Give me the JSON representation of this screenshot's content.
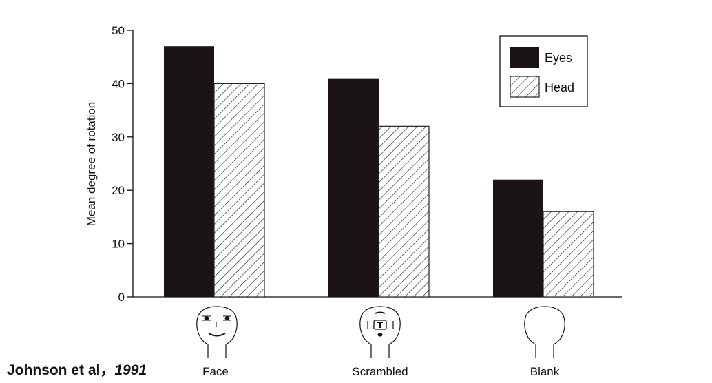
{
  "chart_data": {
    "type": "bar",
    "categories": [
      "Face",
      "Scrambled",
      "Blank"
    ],
    "series": [
      {
        "name": "Eyes",
        "values": [
          47,
          41,
          22
        ],
        "color": "#1a1416",
        "pattern": "solid"
      },
      {
        "name": "Head",
        "values": [
          40,
          32,
          16
        ],
        "color": "#222222",
        "pattern": "hatched"
      }
    ],
    "title": "",
    "xlabel": "",
    "ylabel": "Mean degree of rotation",
    "ylim": [
      0,
      50
    ],
    "yticks": [
      0,
      10,
      20,
      30,
      40,
      50
    ],
    "grid": false,
    "legend_position": "top-right",
    "category_icons": [
      "face-stimulus",
      "scrambled-face-stimulus",
      "blank-head-stimulus"
    ]
  },
  "citation": {
    "authors": "Johnson et al",
    "separator": "，",
    "year": "1991"
  }
}
